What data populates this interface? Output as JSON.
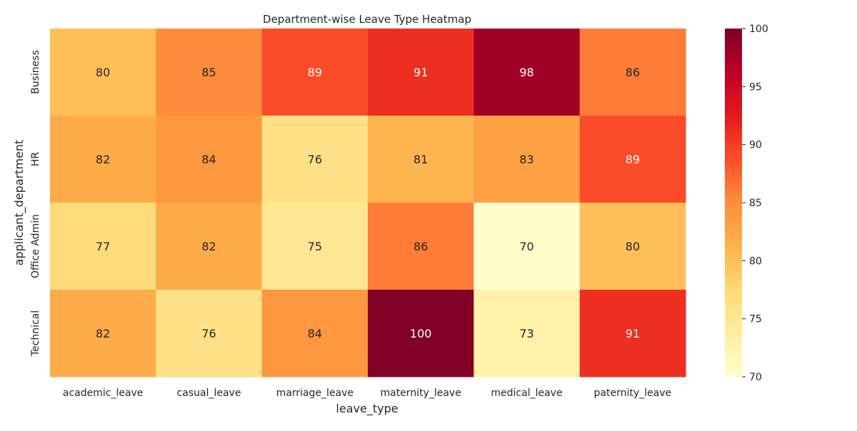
{
  "chart_data": {
    "type": "heatmap",
    "title": "Department-wise Leave Type Heatmap",
    "xlabel": "leave_type",
    "ylabel": "applicant_department",
    "x": [
      "academic_leave",
      "casual_leave",
      "marriage_leave",
      "maternity_leave",
      "medical_leave",
      "paternity_leave"
    ],
    "y": [
      "Business",
      "HR",
      "Office Admin",
      "Technical"
    ],
    "values": [
      [
        80,
        85,
        89,
        91,
        98,
        86
      ],
      [
        82,
        84,
        76,
        81,
        83,
        89
      ],
      [
        77,
        82,
        75,
        86,
        70,
        80
      ],
      [
        82,
        76,
        84,
        100,
        73,
        91
      ]
    ],
    "colorscale": "YlOrRd",
    "vmin": 70,
    "vmax": 100,
    "colorbar_ticks": [
      70,
      75,
      80,
      85,
      90,
      95,
      100
    ],
    "annotated": true
  }
}
